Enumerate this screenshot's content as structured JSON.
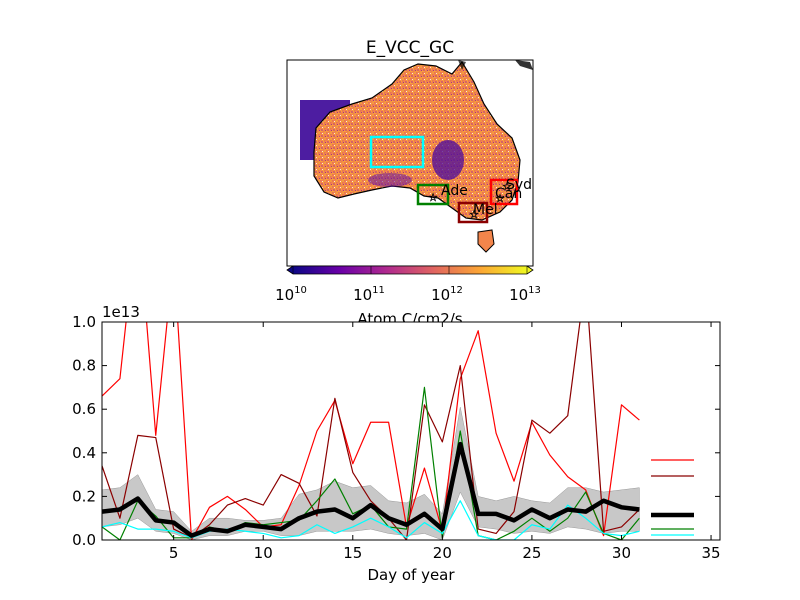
{
  "map": {
    "title": "E_VCC_GC",
    "colorbar": {
      "label": "Atom C/cm2/s",
      "scale": "log",
      "tick_labels": [
        "10",
        "10",
        "10",
        "10"
      ],
      "tick_exponents": [
        "10",
        "11",
        "12",
        "13"
      ],
      "colormap": [
        "#0c0786",
        "#6a00a7",
        "#b02a8f",
        "#e06461",
        "#fca635",
        "#eff821"
      ]
    },
    "regions": [
      {
        "label": "Ade",
        "color": "#008000"
      },
      {
        "label": "Mel",
        "color": "#8b0000"
      },
      {
        "label": "Syd",
        "color": "#ff0000"
      },
      {
        "label": "Can",
        "color": "#ff0000"
      },
      {
        "label": "",
        "color": "#00ffff"
      }
    ]
  },
  "chart_data": {
    "type": "line",
    "title": "",
    "xlabel": "Day of year",
    "ylabel": "",
    "offset_label": "1e13",
    "xlim": [
      1,
      35.5
    ],
    "ylim": [
      0,
      1.0
    ],
    "xticks": [
      "5",
      "10",
      "15",
      "20",
      "25",
      "30",
      "35"
    ],
    "yticks": [
      "0.0",
      "0.2",
      "0.4",
      "0.6",
      "0.8",
      "1.0"
    ],
    "x": [
      1,
      2,
      3,
      4,
      5,
      6,
      7,
      8,
      9,
      10,
      11,
      12,
      13,
      14,
      15,
      16,
      17,
      18,
      19,
      20,
      21,
      22,
      23,
      24,
      25,
      26,
      27,
      28,
      29,
      30,
      31
    ],
    "band": {
      "color": "#c8c8c8",
      "upper": [
        0.23,
        0.24,
        0.3,
        0.14,
        0.13,
        0.04,
        0.1,
        0.1,
        0.09,
        0.09,
        0.1,
        0.21,
        0.23,
        0.27,
        0.24,
        0.25,
        0.18,
        0.17,
        0.21,
        0.12,
        0.61,
        0.2,
        0.18,
        0.2,
        0.18,
        0.17,
        0.24,
        0.24,
        0.22,
        0.23,
        0.24
      ],
      "lower": [
        0.06,
        0.07,
        0.1,
        0.04,
        0.03,
        0.0,
        0.02,
        0.02,
        0.04,
        0.04,
        0.02,
        0.02,
        0.04,
        0.04,
        0.04,
        0.05,
        0.03,
        0.02,
        0.03,
        0.0,
        0.22,
        0.06,
        0.05,
        0.03,
        0.04,
        0.03,
        0.06,
        0.05,
        0.03,
        0.04,
        0.04
      ]
    },
    "series": [
      {
        "color": "#ff0000",
        "width": 1.2,
        "values": [
          0.66,
          0.74,
          1.5,
          0.48,
          1.3,
          0.0,
          0.15,
          0.2,
          0.14,
          0.06,
          0.07,
          0.25,
          0.5,
          0.64,
          0.35,
          0.54,
          0.54,
          0.06,
          0.33,
          0.04,
          0.74,
          0.96,
          0.49,
          0.27,
          0.54,
          0.39,
          0.29,
          0.23,
          0.02,
          0.62,
          0.55
        ]
      },
      {
        "color": "#8b0000",
        "width": 1.2,
        "values": [
          0.34,
          0.1,
          0.48,
          0.47,
          0.05,
          0.01,
          0.07,
          0.16,
          0.19,
          0.16,
          0.3,
          0.26,
          0.11,
          0.65,
          0.31,
          0.18,
          0.1,
          0.0,
          0.62,
          0.45,
          0.8,
          0.05,
          0.03,
          0.13,
          0.55,
          0.49,
          0.57,
          1.2,
          0.04,
          0.06,
          0.14
        ]
      },
      {
        "color": "#008000",
        "width": 1.2,
        "values": [
          0.06,
          0.0,
          0.18,
          0.11,
          0.01,
          0.01,
          0.06,
          0.04,
          0.08,
          0.07,
          0.08,
          0.09,
          0.18,
          0.28,
          0.12,
          0.16,
          0.06,
          0.05,
          0.7,
          0.01,
          0.5,
          0.02,
          0.0,
          0.04,
          0.1,
          0.04,
          0.1,
          0.22,
          0.03,
          0.0,
          0.1
        ]
      },
      {
        "color": "#00ffff",
        "width": 1.2,
        "values": [
          0.06,
          0.08,
          0.05,
          0.05,
          0.04,
          0.01,
          0.04,
          0.05,
          0.04,
          0.03,
          0.01,
          0.02,
          0.07,
          0.03,
          0.06,
          0.1,
          0.06,
          0.01,
          0.08,
          0.03,
          0.18,
          0.02,
          0.0,
          0.0,
          0.07,
          0.05,
          0.16,
          0.1,
          0.03,
          0.02,
          0.04
        ]
      },
      {
        "color": "#000000",
        "width": 4.5,
        "values": [
          0.13,
          0.14,
          0.19,
          0.09,
          0.08,
          0.02,
          0.05,
          0.04,
          0.07,
          0.06,
          0.05,
          0.1,
          0.13,
          0.14,
          0.1,
          0.16,
          0.1,
          0.07,
          0.12,
          0.05,
          0.44,
          0.12,
          0.12,
          0.09,
          0.14,
          0.1,
          0.14,
          0.13,
          0.18,
          0.15,
          0.14
        ]
      }
    ],
    "legend_placement": "right"
  }
}
